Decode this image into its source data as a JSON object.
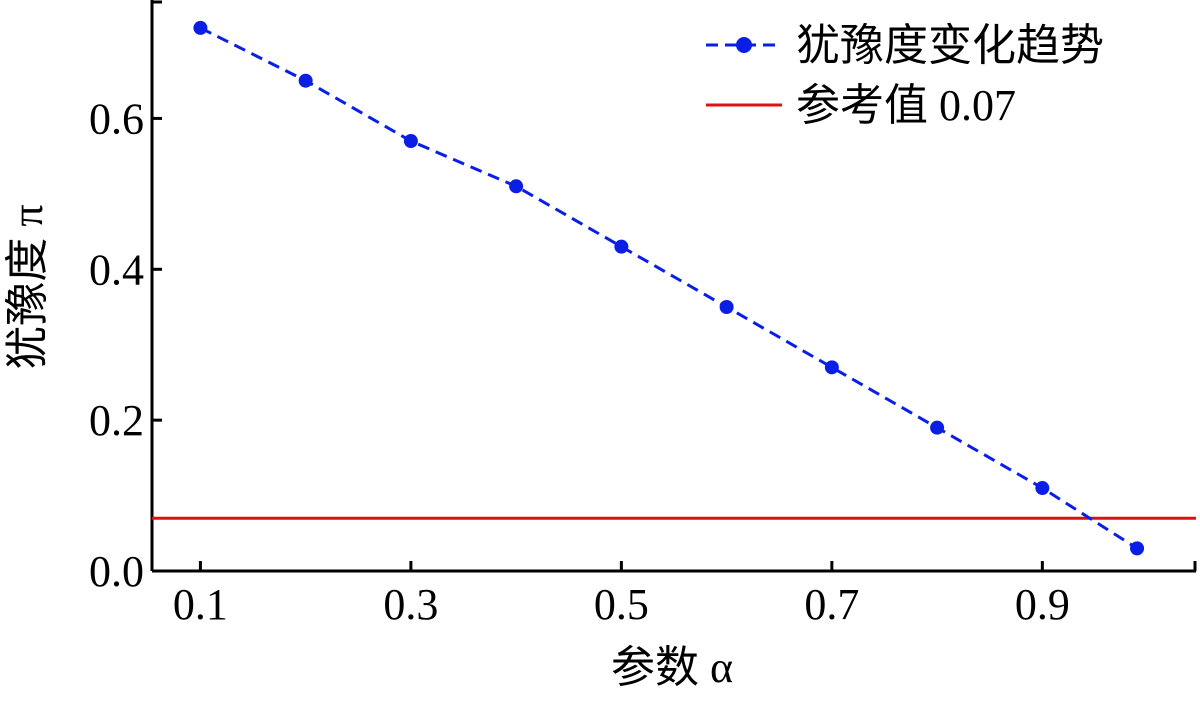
{
  "chart_data": {
    "type": "line",
    "xlabel": "参数 α",
    "ylabel": "犹豫度 π",
    "xlim": [
      0.054,
      1.046
    ],
    "ylim": [
      0.0,
      0.757
    ],
    "xticks": [
      "0.1",
      "0.3",
      "0.5",
      "0.7",
      "0.9"
    ],
    "xtick_values": [
      0.1,
      0.3,
      0.5,
      0.7,
      0.9
    ],
    "yticks": [
      "0.0",
      "0.2",
      "0.4",
      "0.6"
    ],
    "ytick_values": [
      0.0,
      0.2,
      0.4,
      0.6
    ],
    "grid": false,
    "legend_placement": "top-right",
    "series": [
      {
        "name": "犹豫度变化趋势",
        "style": "dashed-line-with-circle-markers",
        "color": "#0a1ee6",
        "x": [
          0.1,
          0.2,
          0.3,
          0.4,
          0.5,
          0.6,
          0.7,
          0.8,
          0.9,
          0.99
        ],
        "y": [
          0.72,
          0.65,
          0.57,
          0.51,
          0.43,
          0.35,
          0.27,
          0.19,
          0.11,
          0.03
        ]
      },
      {
        "name": "参考值 0.07",
        "style": "solid-horizontal-line",
        "color": "#e01010",
        "y": 0.07
      }
    ]
  }
}
